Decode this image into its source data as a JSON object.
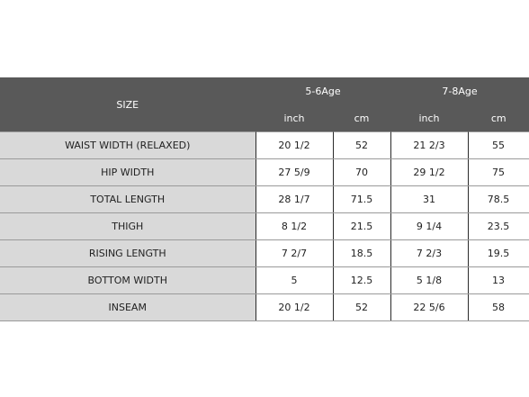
{
  "table": {
    "corner_label": "SIZE",
    "groups": [
      {
        "label": "5-6Age",
        "units": [
          "inch",
          "cm"
        ]
      },
      {
        "label": "7-8Age",
        "units": [
          "inch",
          "cm"
        ]
      }
    ],
    "rows": [
      {
        "label": "WAIST WIDTH (RELAXED)",
        "values": [
          "20 1/2",
          "52",
          "21 2/3",
          "55"
        ]
      },
      {
        "label": "HIP WIDTH",
        "values": [
          "27 5/9",
          "70",
          "29 1/2",
          "75"
        ]
      },
      {
        "label": "TOTAL LENGTH",
        "values": [
          "28 1/7",
          "71.5",
          "31",
          "78.5"
        ]
      },
      {
        "label": "THIGH",
        "values": [
          "8 1/2",
          "21.5",
          "9 1/4",
          "23.5"
        ]
      },
      {
        "label": "RISING LENGTH",
        "values": [
          "7 2/7",
          "18.5",
          "7 2/3",
          "19.5"
        ]
      },
      {
        "label": "BOTTOM WIDTH",
        "values": [
          "5",
          "12.5",
          "5 1/8",
          "13"
        ]
      },
      {
        "label": "INSEAM",
        "values": [
          "20 1/2",
          "52",
          "22 5/6",
          "58"
        ]
      }
    ],
    "colors": {
      "header_bg": "#595959",
      "header_text": "#ffffff",
      "label_bg": "#d9d9d9",
      "cell_bg": "#ffffff"
    }
  }
}
